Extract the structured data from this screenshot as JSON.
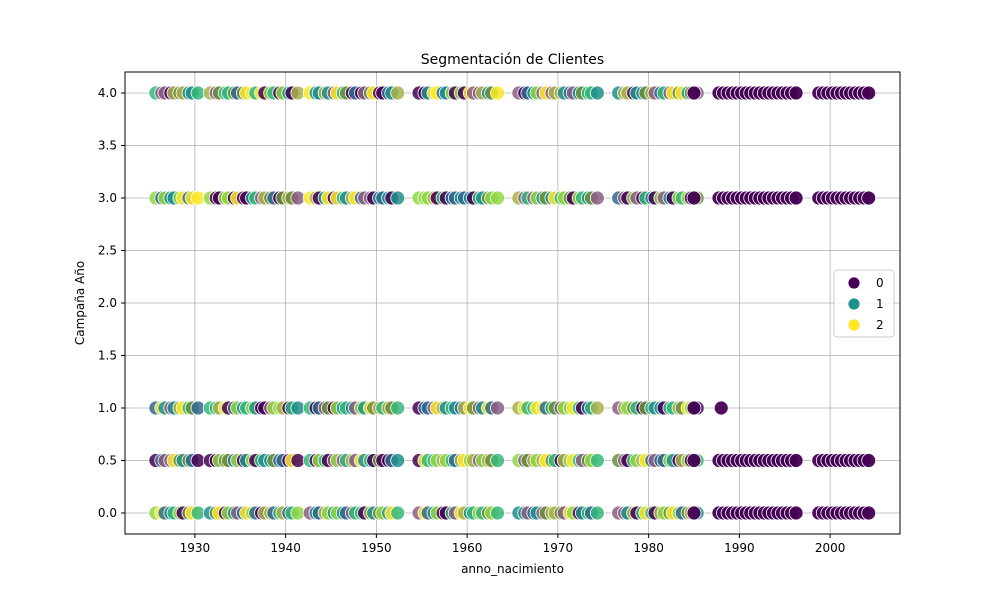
{
  "chart_data": {
    "type": "scatter",
    "title": "Segmentación de Clientes",
    "xlabel": "anno_nacimiento",
    "ylabel": "Campaña Año",
    "xlim": [
      1922.3,
      2007.7
    ],
    "ylim": [
      -0.2,
      4.2
    ],
    "xticks": [
      1930,
      1940,
      1950,
      1960,
      1970,
      1980,
      1990,
      2000
    ],
    "yticks": [
      0.0,
      0.5,
      1.0,
      1.5,
      2.0,
      2.5,
      3.0,
      3.5,
      4.0
    ],
    "grid": true,
    "legend": {
      "position": "center-right",
      "entries": [
        {
          "label": "0",
          "color": "#440154"
        },
        {
          "label": "1",
          "color": "#21918c"
        },
        {
          "label": "2",
          "color": "#fde725"
        }
      ]
    },
    "colors": [
      "#440154",
      "#31688e",
      "#21918c",
      "#35b779",
      "#90d743",
      "#fde725",
      "#8b5e83",
      "#6b8e3a",
      "#a8b14a"
    ],
    "y_levels": [
      0.0,
      0.5,
      1.0,
      3.0,
      4.0
    ],
    "x_groups_mixed": [
      [
        1926,
        1930
      ],
      [
        1932,
        1941
      ],
      [
        1943,
        1952
      ],
      [
        1955,
        1963
      ],
      [
        1966,
        1974
      ],
      [
        1977,
        1985
      ]
    ],
    "x_dark_only": [
      1988,
      1989,
      1990,
      1991,
      1992,
      1993,
      1994,
      1995,
      1996,
      1999,
      2000,
      2001,
      2002,
      2003,
      2004
    ],
    "y1_dark_only": [
      1988
    ]
  }
}
